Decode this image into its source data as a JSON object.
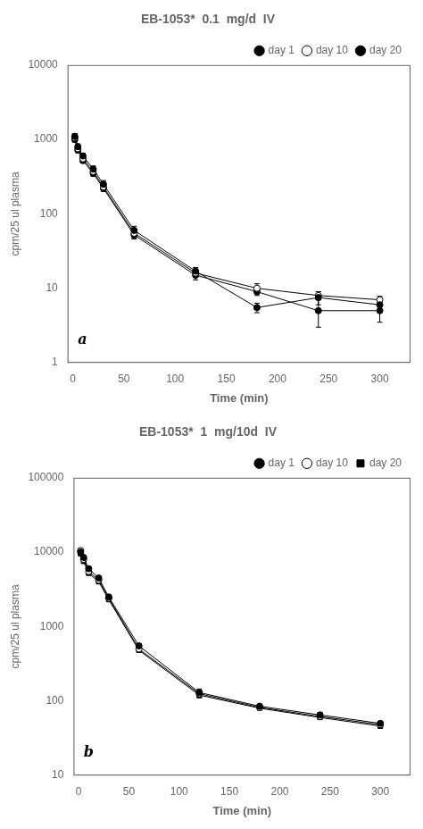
{
  "chart_data": [
    {
      "type": "line",
      "title": "EB-1053*  0.1  mg/d  IV",
      "x_label": "Time (min)",
      "y_label": "cpm/25 ul plasma",
      "annotation": "a",
      "log": "y",
      "grid": false,
      "legend": "upper right",
      "xlim": [
        -5,
        330
      ],
      "xticks": [
        0,
        50,
        100,
        150,
        200,
        250,
        300
      ],
      "ylim": [
        1,
        10000
      ],
      "yticks": [
        1,
        10,
        100,
        1000,
        10000
      ],
      "x": [
        2,
        5,
        10,
        20,
        30,
        60,
        120,
        180,
        240,
        300
      ],
      "series": [
        {
          "name": "day 1",
          "color": "#000000",
          "marker": "circle",
          "values": [
            1100,
            800,
            600,
            400,
            250,
            60,
            17,
            5.5,
            7.5,
            6.0
          ],
          "yerr": [
            100,
            70,
            50,
            40,
            30,
            8,
            2,
            0.8,
            1.5,
            0.8
          ]
        },
        {
          "name": "day 10",
          "color": "#000000",
          "marker": "open_circle",
          "values": [
            1050,
            750,
            550,
            370,
            230,
            55,
            16,
            10.0,
            8.0,
            7.0
          ],
          "yerr": [
            90,
            60,
            45,
            35,
            25,
            7,
            2,
            1.5,
            1.0,
            0.8
          ]
        },
        {
          "name": "day 20",
          "color": "#000000",
          "marker": "circle",
          "values": [
            1000,
            720,
            520,
            350,
            220,
            52,
            15,
            9.0,
            5.0,
            5.0
          ],
          "yerr": [
            80,
            55,
            40,
            30,
            20,
            6,
            2,
            1.0,
            2.0,
            1.5
          ]
        }
      ]
    },
    {
      "type": "line",
      "title": "EB-1053*  1  mg/10d  IV",
      "x_label": "Time (min)",
      "y_label": "cpm/25 ul plasma",
      "annotation": "b",
      "log": "y",
      "grid": false,
      "legend": "upper right",
      "xlim": [
        -5,
        330
      ],
      "xticks": [
        0,
        50,
        100,
        150,
        200,
        250,
        300
      ],
      "ylim": [
        10,
        100000
      ],
      "yticks": [
        10,
        100,
        1000,
        10000,
        100000
      ],
      "x": [
        2,
        5,
        10,
        20,
        30,
        60,
        120,
        180,
        240,
        300
      ],
      "series": [
        {
          "name": "day 1",
          "color": "#000000",
          "marker": "circle",
          "values": [
            10000,
            8500,
            6000,
            4500,
            2500,
            550,
            130,
            85,
            65,
            50
          ],
          "yerr": [
            500,
            400,
            300,
            200,
            150,
            30,
            15,
            5,
            5,
            3
          ]
        },
        {
          "name": "day 10",
          "color": "#000000",
          "marker": "open_circle",
          "values": [
            10500,
            8000,
            5500,
            4200,
            2400,
            500,
            125,
            82,
            62,
            48
          ],
          "yerr": [
            450,
            380,
            280,
            190,
            140,
            28,
            12,
            4,
            4,
            3
          ]
        },
        {
          "name": "day 20",
          "color": "#000000",
          "marker": "square",
          "values": [
            9500,
            7500,
            5200,
            4000,
            2300,
            480,
            120,
            80,
            60,
            46
          ],
          "yerr": [
            400,
            360,
            260,
            180,
            130,
            25,
            10,
            4,
            3,
            3
          ]
        }
      ]
    }
  ]
}
